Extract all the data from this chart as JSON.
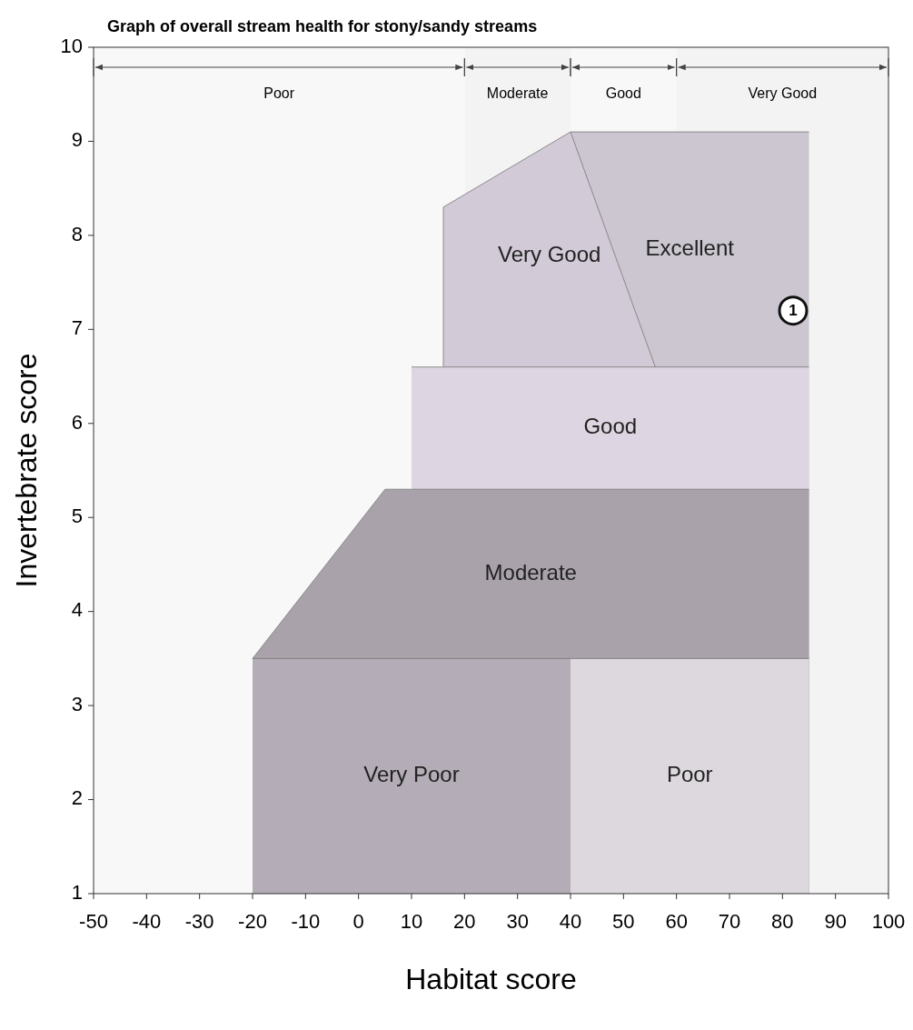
{
  "chart_data": {
    "type": "area",
    "title": "Graph of overall stream health for stony/sandy streams",
    "xlabel": "Habitat score",
    "ylabel": "Invertebrate score",
    "xlim": [
      -50,
      100
    ],
    "xticks": [
      -50,
      -40,
      -30,
      -20,
      -10,
      0,
      10,
      20,
      30,
      40,
      50,
      60,
      70,
      80,
      90,
      100
    ],
    "ylim": [
      1,
      10
    ],
    "yticks": [
      1,
      2,
      3,
      4,
      5,
      6,
      7,
      8,
      9,
      10
    ],
    "grid": false,
    "series": [
      {
        "name": "Excellent",
        "color": "#cbc6cf",
        "x": [
          40,
          85
        ],
        "values": [
          9.1,
          9.1
        ]
      },
      {
        "name": "Very Good",
        "color": "#d2cad7",
        "x": [
          16,
          16,
          40,
          56
        ],
        "values": [
          6.6,
          8.3,
          9.1,
          6.6
        ]
      },
      {
        "name": "Good",
        "color": "#ddd5e1",
        "x": [
          10,
          85
        ],
        "values": [
          6.6,
          6.6
        ]
      },
      {
        "name": "Moderate",
        "color": "#a9a2ab",
        "x": [
          -20,
          5,
          85
        ],
        "values": [
          3.5,
          5.3,
          5.3
        ]
      },
      {
        "name": "Very Poor",
        "color": "#b4acb6",
        "x": [
          -20,
          40
        ],
        "values": [
          3.5,
          3.5
        ]
      },
      {
        "name": "Poor",
        "color": "#dcd8dd",
        "x": [
          40,
          85
        ],
        "values": [
          3.5,
          3.5
        ]
      }
    ],
    "annotations": [
      {
        "text": "1",
        "x": 82,
        "y": 7.2
      }
    ],
    "bands": [
      {
        "axis": "x",
        "from": -50,
        "to": 20,
        "label": "Poor"
      },
      {
        "axis": "x",
        "from": 20,
        "to": 40,
        "label": "Moderate"
      },
      {
        "axis": "x",
        "from": 40,
        "to": 60,
        "label": "Good"
      },
      {
        "axis": "x",
        "from": 60,
        "to": 100,
        "label": "Very Good"
      }
    ]
  }
}
